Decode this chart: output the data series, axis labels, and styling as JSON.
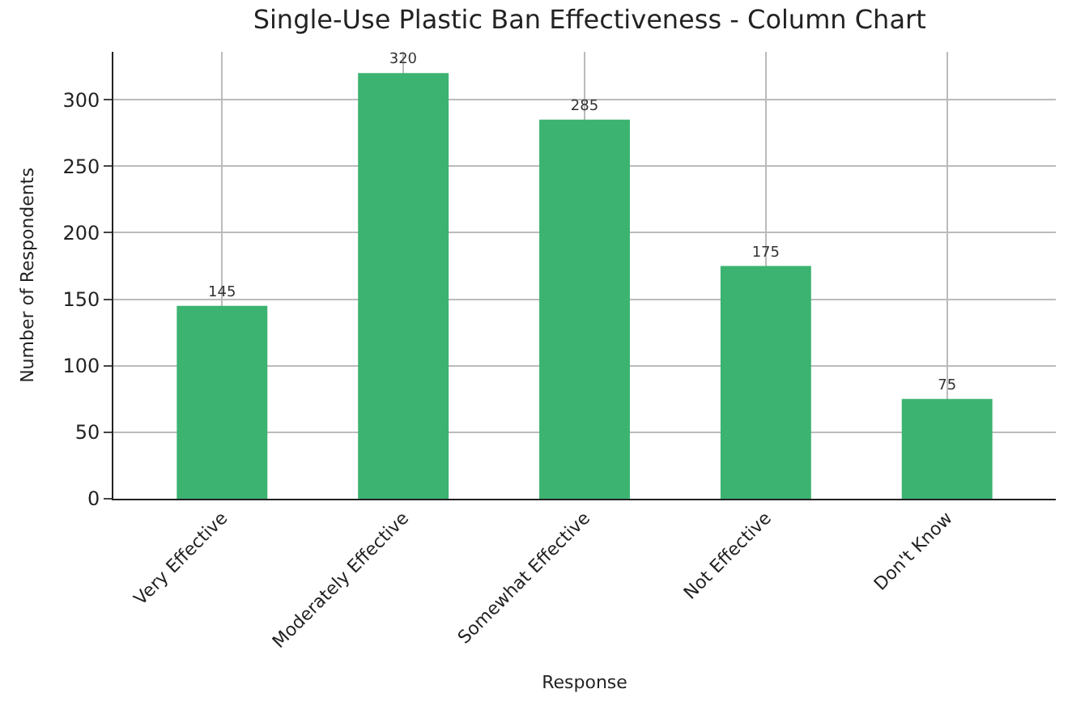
{
  "chart_data": {
    "type": "bar",
    "title": "Single-Use Plastic Ban Effectiveness - Column Chart",
    "xlabel": "Response",
    "ylabel": "Number of Respondents",
    "categories": [
      "Very Effective",
      "Moderately Effective",
      "Somewhat Effective",
      "Not Effective",
      "Don't Know"
    ],
    "values": [
      145,
      320,
      285,
      175,
      75
    ],
    "color": "#3cb371",
    "ylim": [
      0,
      336
    ],
    "yticks": [
      0,
      50,
      100,
      150,
      200,
      250,
      300
    ],
    "grid": true,
    "data_labels": true
  }
}
